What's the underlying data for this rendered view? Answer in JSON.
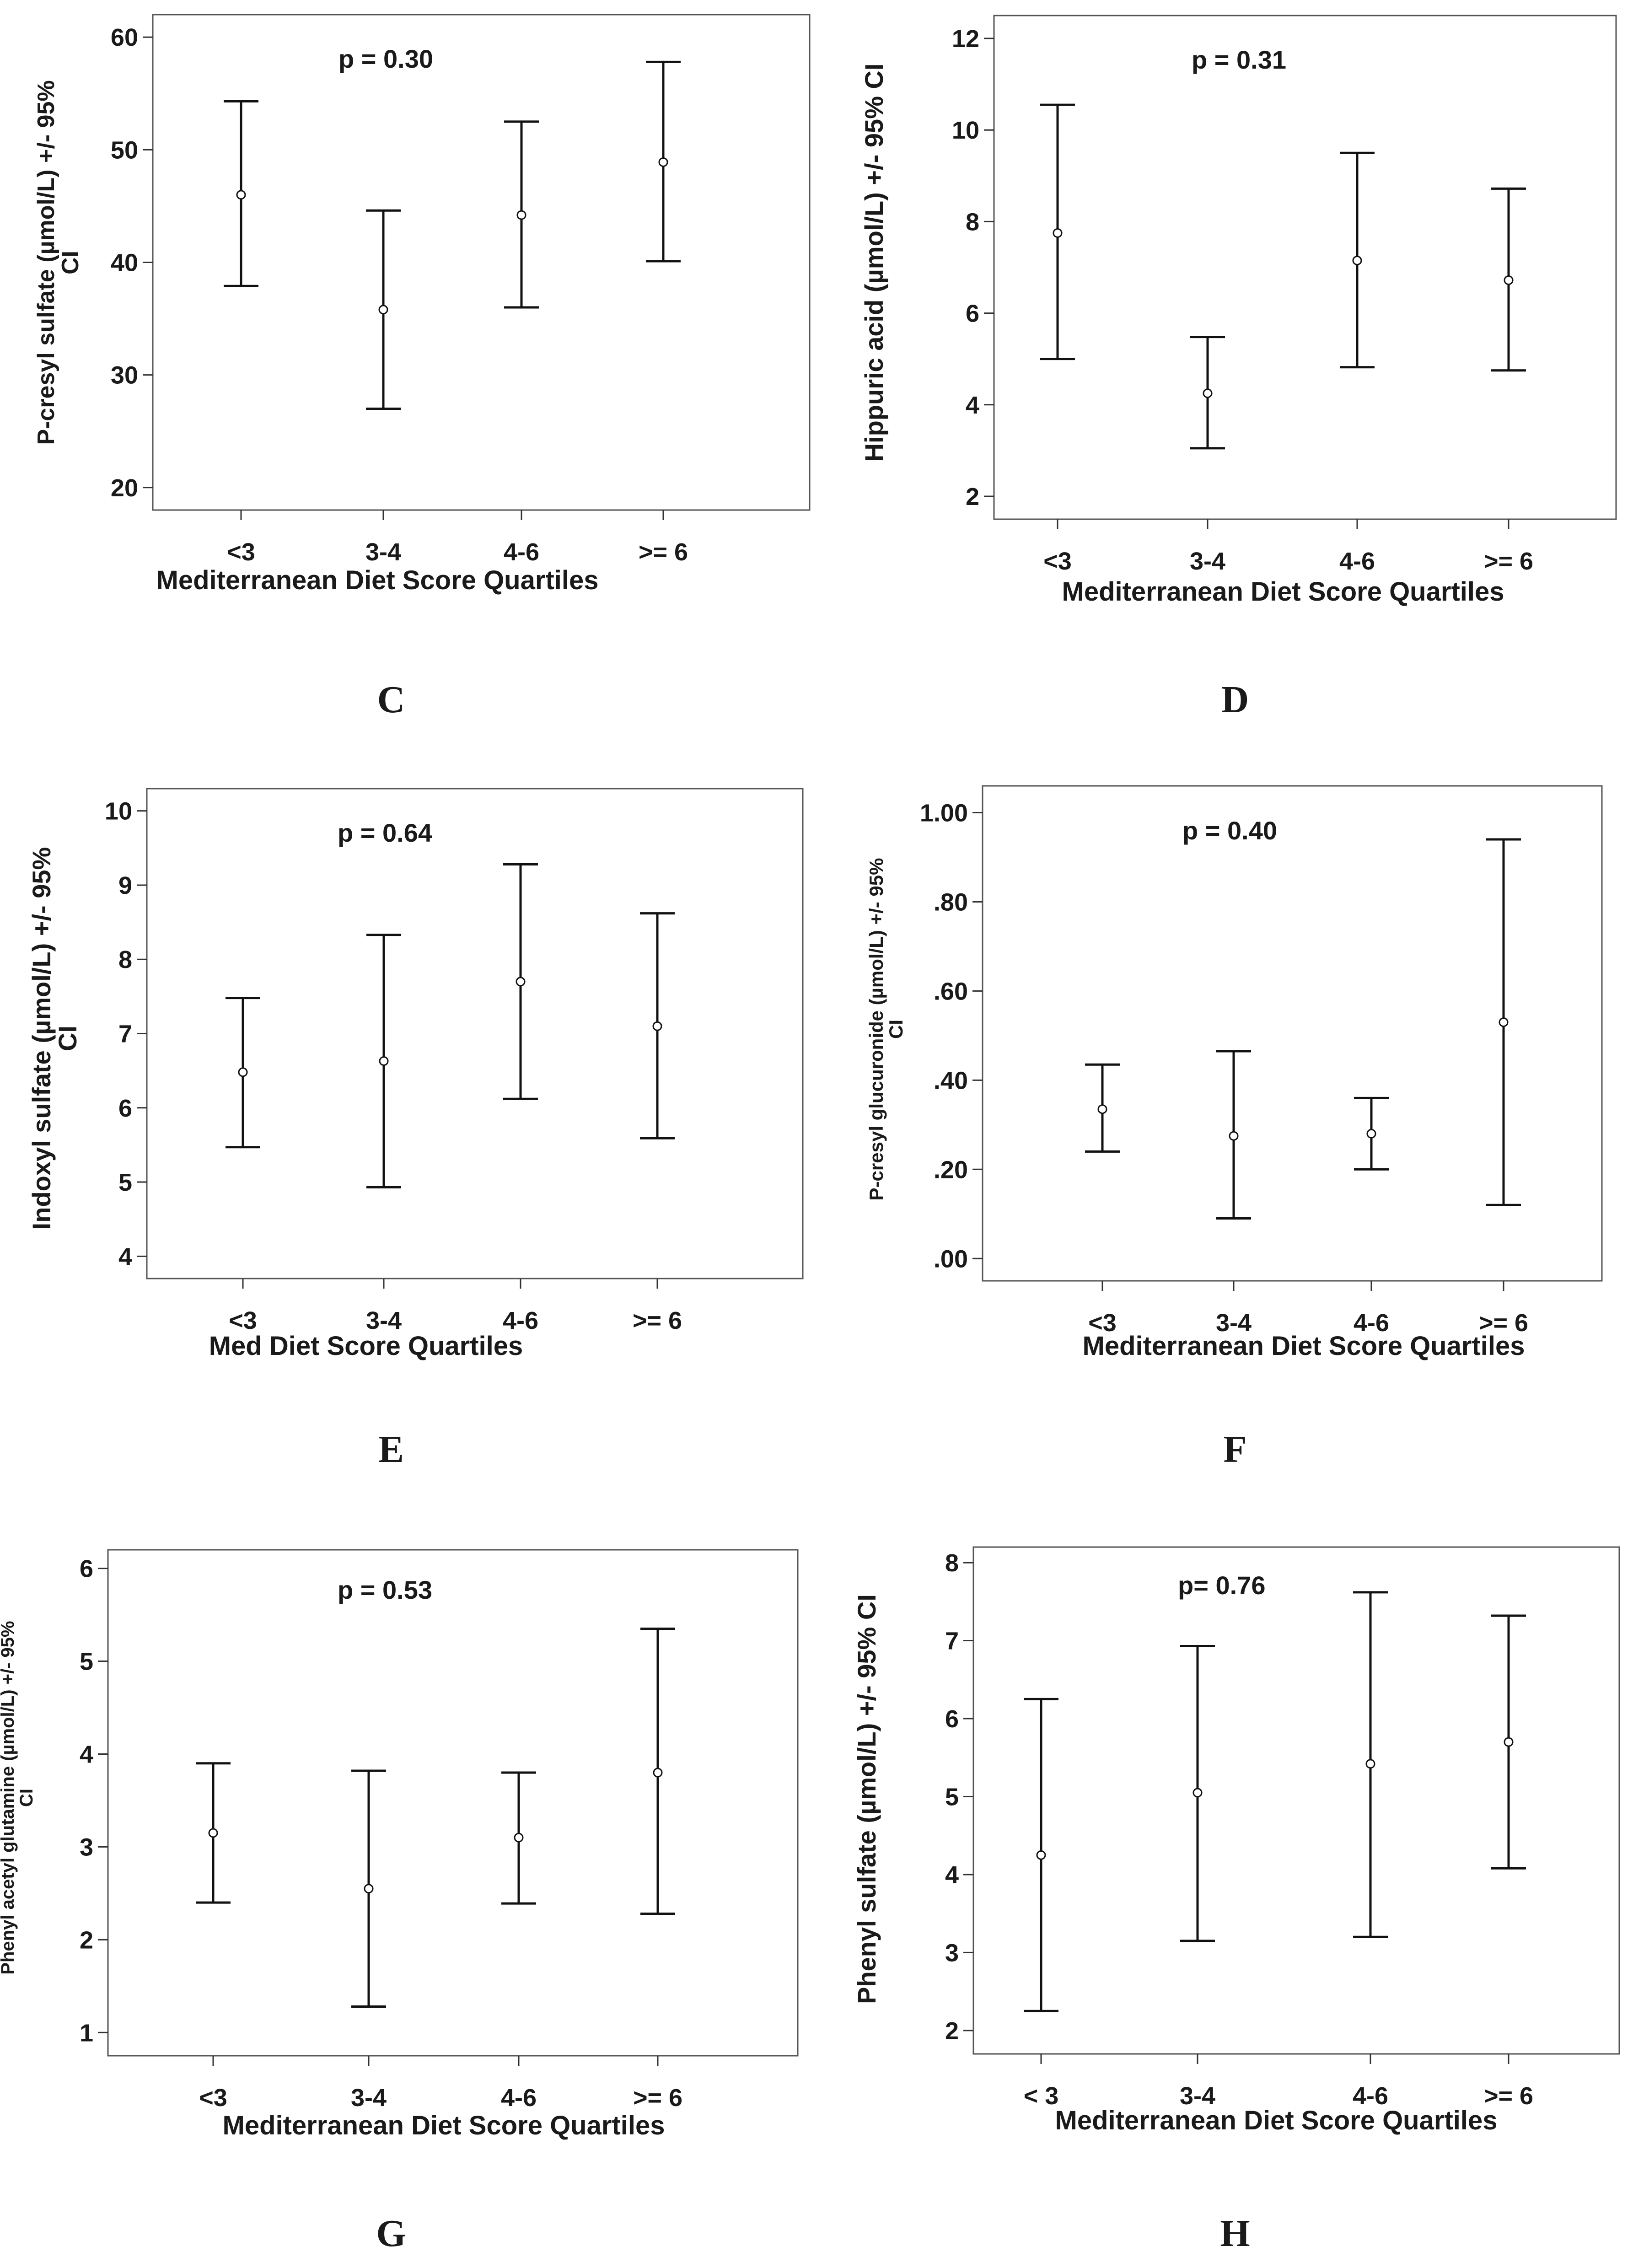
{
  "chart_data": [
    {
      "type": "errorbar",
      "panel": "C",
      "title": "",
      "p_value": "p = 0.30",
      "xlabel": "Mediterranean Diet Score Quartiles",
      "ylabel_lines": [
        "P-cresyl sulfate (µmol/L) +/- 95%",
        "CI"
      ],
      "categories": [
        "<3",
        "3-4",
        "4-6",
        ">= 6"
      ],
      "means": [
        46.0,
        35.8,
        44.2,
        48.9
      ],
      "ci_lower": [
        37.9,
        27.0,
        36.0,
        40.1
      ],
      "ci_upper": [
        54.3,
        44.6,
        52.5,
        57.8
      ],
      "ylim": [
        18.0,
        62.0
      ],
      "yticks": [
        20,
        30,
        40,
        50,
        60
      ],
      "ytick_labels": [
        "20",
        "30",
        "40",
        "50",
        "60"
      ]
    },
    {
      "type": "errorbar",
      "panel": "D",
      "title": "",
      "p_value": "p = 0.31",
      "xlabel": "Mediterranean Diet Score Quartiles",
      "ylabel_lines": [
        "Hippuric acid (µmol/L) +/- 95% CI"
      ],
      "categories": [
        "<3",
        "3-4",
        "4-6",
        ">= 6"
      ],
      "means": [
        7.75,
        4.25,
        7.15,
        6.72
      ],
      "ci_lower": [
        5.0,
        3.05,
        4.82,
        4.75
      ],
      "ci_upper": [
        10.55,
        5.48,
        9.5,
        8.72
      ],
      "ylim": [
        1.5,
        12.5
      ],
      "yticks": [
        2,
        4,
        6,
        8,
        10,
        12
      ],
      "ytick_labels": [
        "2",
        "4",
        "6",
        "8",
        "10",
        "12"
      ]
    },
    {
      "type": "errorbar",
      "panel": "E",
      "title": "",
      "p_value": "p = 0.64",
      "xlabel": "Med Diet Score Quartiles",
      "ylabel_lines": [
        "Indoxyl sulfate (µmol/L) +/- 95%",
        "CI"
      ],
      "categories": [
        "<3",
        "3-4",
        "4-6",
        ">= 6"
      ],
      "means": [
        6.48,
        6.63,
        7.7,
        7.1
      ],
      "ci_lower": [
        5.47,
        4.93,
        6.12,
        5.59
      ],
      "ci_upper": [
        7.48,
        8.33,
        9.28,
        8.62
      ],
      "ylim": [
        3.7,
        10.3
      ],
      "yticks": [
        4,
        5,
        6,
        7,
        8,
        9,
        10
      ],
      "ytick_labels": [
        "4",
        "5",
        "6",
        "7",
        "8",
        "9",
        "10"
      ]
    },
    {
      "type": "errorbar",
      "panel": "F",
      "title": "",
      "p_value": "p = 0.40",
      "xlabel": "Mediterranean Diet Score Quartiles",
      "ylabel_lines": [
        "P-cresyl glucuronide (µmol/L) +/- 95%",
        "CI"
      ],
      "categories": [
        "<3",
        "3-4",
        "4-6",
        ">= 6"
      ],
      "means": [
        0.335,
        0.275,
        0.28,
        0.53
      ],
      "ci_lower": [
        0.24,
        0.09,
        0.2,
        0.12
      ],
      "ci_upper": [
        0.435,
        0.465,
        0.36,
        0.94
      ],
      "ylim": [
        -0.05,
        1.06
      ],
      "yticks": [
        0.0,
        0.2,
        0.4,
        0.6,
        0.8,
        1.0
      ],
      "ytick_labels": [
        ".00",
        ".20",
        ".40",
        ".60",
        ".80",
        "1.00"
      ]
    },
    {
      "type": "errorbar",
      "panel": "G",
      "title": "",
      "p_value": "p = 0.53",
      "xlabel": "Mediterranean Diet Score Quartiles",
      "ylabel_lines": [
        "Phenyl acetyl glutamine (µmol/L) +/- 95%",
        "CI"
      ],
      "categories": [
        "<3",
        "3-4",
        "4-6",
        ">= 6"
      ],
      "means": [
        3.15,
        2.55,
        3.1,
        3.8
      ],
      "ci_lower": [
        2.4,
        1.28,
        2.39,
        2.28
      ],
      "ci_upper": [
        3.9,
        3.82,
        3.8,
        5.35
      ],
      "ylim": [
        0.75,
        6.2
      ],
      "yticks": [
        1,
        2,
        3,
        4,
        5,
        6
      ],
      "ytick_labels": [
        "1",
        "2",
        "3",
        "4",
        "5",
        "6"
      ]
    },
    {
      "type": "errorbar",
      "panel": "H",
      "title": "",
      "p_value": "p= 0.76",
      "xlabel": "Mediterranean Diet Score Quartiles",
      "ylabel_lines": [
        "Phenyl sulfate (µmol/L) +/- 95% CI"
      ],
      "categories": [
        "< 3",
        "3-4",
        "4-6",
        ">= 6"
      ],
      "means": [
        4.25,
        5.05,
        5.42,
        5.7
      ],
      "ci_lower": [
        2.25,
        3.15,
        3.2,
        4.08
      ],
      "ci_upper": [
        6.25,
        6.93,
        7.62,
        7.32
      ],
      "ylim": [
        1.7,
        8.2
      ],
      "yticks": [
        2,
        3,
        4,
        5,
        6,
        7,
        8
      ],
      "ytick_labels": [
        "2",
        "3",
        "4",
        "5",
        "6",
        "7",
        "8"
      ]
    }
  ]
}
